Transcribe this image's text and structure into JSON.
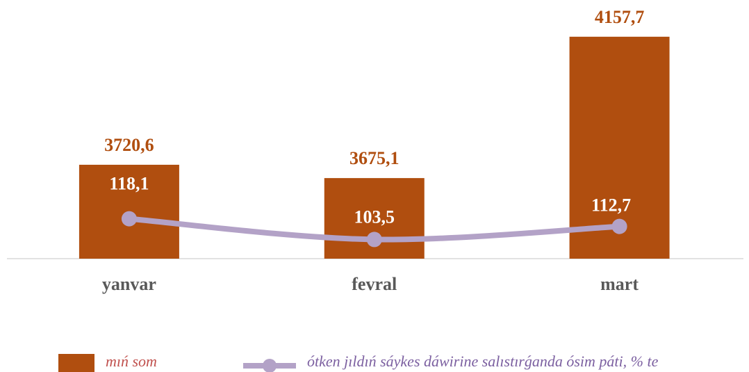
{
  "chart_data": {
    "type": "bar_line",
    "categories": [
      "yanvar",
      "fevral",
      "mart"
    ],
    "series": [
      {
        "name": "mıń som",
        "type": "bar",
        "color": "#b04e0f",
        "values": [
          3720.6,
          3675.1,
          4157.7
        ],
        "value_labels": [
          "3720,6",
          "3675,1",
          "4157,7"
        ]
      },
      {
        "name": "ótken jıldıń sáykes dáwirine salıstırǵanda ósim páti, % te",
        "type": "line",
        "axis": "y2",
        "color": "#b3a2c7",
        "values": [
          118.1,
          103.5,
          112.7
        ],
        "value_labels": [
          "118,1",
          "103,5",
          "112,7"
        ]
      }
    ],
    "ylim": [
      3400,
      4200
    ],
    "y2lim": [
      90,
      255
    ],
    "legend": "bottom"
  }
}
